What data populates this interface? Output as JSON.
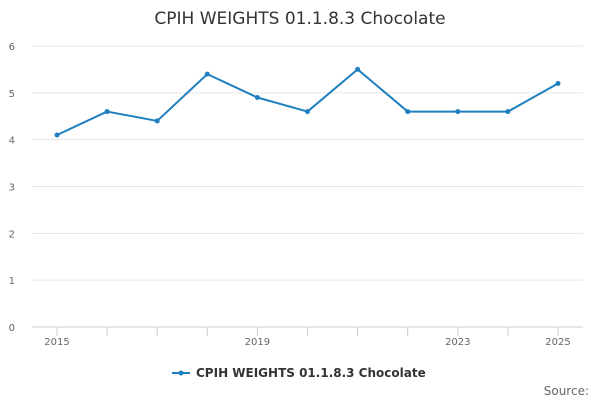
{
  "chart_data": {
    "type": "line",
    "title": "CPIH WEIGHTS 01.1.8.3 Chocolate",
    "xlabel": "",
    "ylabel": "",
    "x": [
      2015,
      2016,
      2017,
      2018,
      2019,
      2020,
      2021,
      2022,
      2023,
      2024,
      2025
    ],
    "x_tick_labels": [
      "2015",
      "2019",
      "2023",
      "2025"
    ],
    "ylim": [
      0,
      6
    ],
    "y_ticks": [
      "0",
      "1",
      "2",
      "3",
      "4",
      "5",
      "6"
    ],
    "grid": true,
    "legend_position": "bottom",
    "series": [
      {
        "name": "CPIH WEIGHTS 01.1.8.3 Chocolate",
        "color": "#1f7fbf",
        "values": [
          4.1,
          4.6,
          4.4,
          5.4,
          4.9,
          4.6,
          5.5,
          4.6,
          4.6,
          4.6,
          5.2
        ]
      }
    ],
    "source_label": "Source:"
  }
}
